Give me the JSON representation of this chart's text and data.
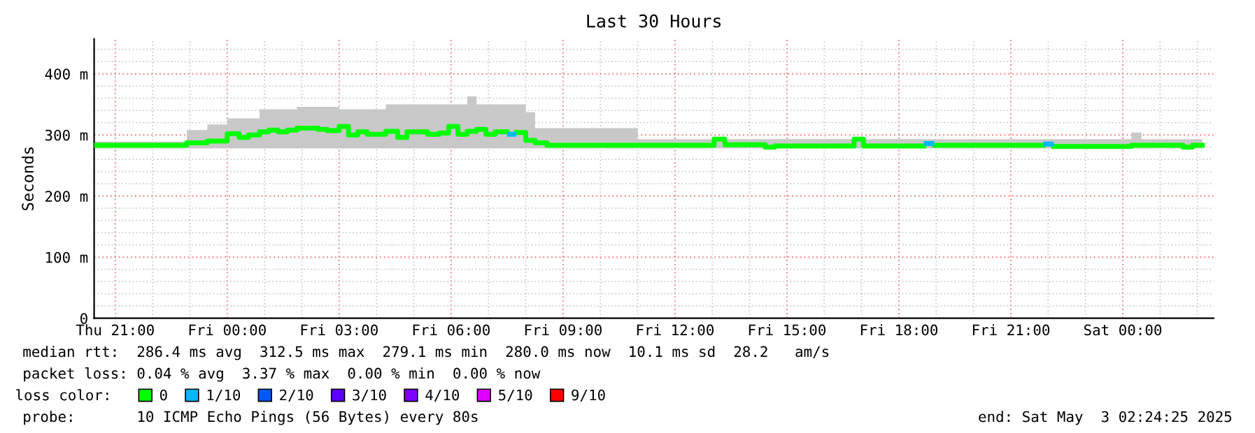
{
  "chart_data": {
    "type": "step",
    "title": "Last 30 Hours",
    "ylabel": "Seconds",
    "xlim": [
      "2025-05-01T20:26",
      "2025-05-03T02:26"
    ],
    "xticks": [
      {
        "value": "2025-05-01T21:00",
        "label": "Thu 21:00"
      },
      {
        "value": "2025-05-02T00:00",
        "label": "Fri 00:00"
      },
      {
        "value": "2025-05-02T03:00",
        "label": "Fri 03:00"
      },
      {
        "value": "2025-05-02T06:00",
        "label": "Fri 06:00"
      },
      {
        "value": "2025-05-02T09:00",
        "label": "Fri 09:00"
      },
      {
        "value": "2025-05-02T12:00",
        "label": "Fri 12:00"
      },
      {
        "value": "2025-05-02T15:00",
        "label": "Fri 15:00"
      },
      {
        "value": "2025-05-02T18:00",
        "label": "Fri 18:00"
      },
      {
        "value": "2025-05-02T21:00",
        "label": "Fri 21:00"
      },
      {
        "value": "2025-05-03T00:00",
        "label": "Sat 00:00"
      }
    ],
    "ylim": [
      0,
      457
    ],
    "yticks": [
      0,
      {
        "value": 100,
        "label": "100 m"
      },
      {
        "value": 200,
        "label": "200 m"
      },
      {
        "value": 300,
        "label": "300 m"
      },
      {
        "value": 400,
        "label": "400 m"
      }
    ],
    "grid": true,
    "legend": "bottom",
    "legend_title": "loss color:",
    "series": [
      {
        "name": "0",
        "color": "#00ff00",
        "x": [
          "2025-05-01T20:26",
          "2025-05-01T22:55",
          "2025-05-01T23:28",
          "2025-05-02T00:00",
          "2025-05-02T00:19",
          "2025-05-02T00:34",
          "2025-05-02T00:52",
          "2025-05-02T01:07",
          "2025-05-02T01:22",
          "2025-05-02T01:37",
          "2025-05-02T01:52",
          "2025-05-02T02:26",
          "2025-05-02T02:41",
          "2025-05-02T03:00",
          "2025-05-02T03:15",
          "2025-05-02T03:30",
          "2025-05-02T03:45",
          "2025-05-02T04:15",
          "2025-05-02T04:34",
          "2025-05-02T04:49",
          "2025-05-02T05:22",
          "2025-05-02T05:41",
          "2025-05-02T05:56",
          "2025-05-02T06:11",
          "2025-05-02T06:26",
          "2025-05-02T06:41",
          "2025-05-02T06:56",
          "2025-05-02T07:11",
          "2025-05-02T07:30",
          "2025-05-02T07:45",
          "2025-05-02T08:00",
          "2025-05-02T08:15",
          "2025-05-02T08:34",
          "2025-05-02T11:00",
          "2025-05-02T13:03",
          "2025-05-02T13:20",
          "2025-05-02T14:25",
          "2025-05-02T14:40",
          "2025-05-02T16:48",
          "2025-05-02T17:03",
          "2025-05-02T18:40",
          "2025-05-02T18:57",
          "2025-05-02T21:52",
          "2025-05-02T22:09",
          "2025-05-03T00:14",
          "2025-05-03T00:30",
          "2025-05-03T01:37",
          "2025-05-03T01:52",
          "2025-05-03T02:08"
        ],
        "values": [
          283,
          287,
          290,
          302,
          296,
          300,
          305,
          308,
          305,
          308,
          311,
          309,
          307,
          314,
          300,
          305,
          301,
          306,
          296,
          305,
          301,
          303,
          314,
          301,
          306,
          309,
          301,
          305,
          null,
          304,
          291,
          287,
          283,
          283,
          293,
          284,
          280,
          282,
          293,
          282,
          null,
          283,
          null,
          281,
          283,
          283,
          280,
          283,
          283
        ],
        "lower": [
          278,
          278,
          278,
          278,
          278,
          278,
          278,
          278,
          278,
          278,
          278,
          278,
          278,
          278,
          278,
          278,
          278,
          278,
          278,
          278,
          278,
          278,
          278,
          278,
          278,
          278,
          278,
          278,
          278,
          278,
          278,
          278,
          278,
          278,
          278,
          278,
          278,
          278,
          278,
          278,
          278,
          278,
          278,
          278,
          278,
          278,
          278,
          278,
          278
        ],
        "upper": [
          289,
          308,
          317,
          327,
          327,
          327,
          342,
          342,
          342,
          342,
          346,
          346,
          346,
          342,
          342,
          342,
          342,
          350,
          350,
          350,
          350,
          350,
          350,
          350,
          363,
          350,
          350,
          350,
          350,
          350,
          337,
          311,
          311,
          293,
          295,
          293,
          293,
          293,
          295,
          293,
          293,
          293,
          293,
          293,
          304,
          293,
          293,
          293,
          293
        ]
      },
      {
        "name": "1/10",
        "type": "line",
        "color": "#00b8ff",
        "x": [
          "2025-05-02T07:30",
          "2025-05-02T07:45"
        ],
        "values": [
          301,
          301
        ]
      },
      {
        "type": "line",
        "color": "#00b8ff",
        "x": [
          "2025-05-02T18:40",
          "2025-05-02T18:57"
        ],
        "values": [
          286,
          286
        ]
      },
      {
        "type": "line",
        "color": "#00b8ff",
        "x": [
          "2025-05-02T21:52",
          "2025-05-02T22:09"
        ],
        "values": [
          285,
          285
        ]
      },
      {
        "name": "2/10",
        "color": "#0059ff"
      },
      {
        "name": "3/10",
        "color": "#5e00ff"
      },
      {
        "name": "4/10",
        "color": "#7e00ff"
      },
      {
        "name": "5/10",
        "color": "#dd00ff"
      },
      {
        "name": "9/10",
        "color": "#ff0000"
      }
    ],
    "annotations": [
      "median rtt:  286.4 ms avg  312.5 ms max  279.1 ms min  280.0 ms now  10.1 ms sd  28.2   am/s",
      "packet loss: 0.04 % avg  3.37 % max  0.00 % min  0.00 % now",
      "probe:       10 ICMP Echo Pings (56 Bytes) every 80s",
      "end: Sat May  3 02:24:25 2025"
    ]
  }
}
